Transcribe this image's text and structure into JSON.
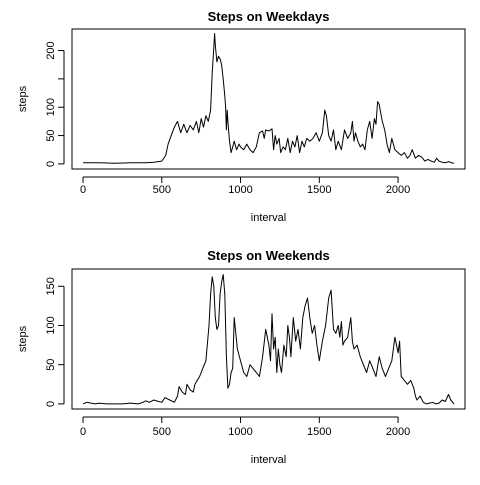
{
  "chart_data": [
    {
      "type": "line",
      "title": "Steps on Weekdays",
      "xlabel": "interval",
      "ylabel": "steps",
      "xlim": [
        -70,
        2425
      ],
      "ylim": [
        -9,
        238
      ],
      "xticks": [
        0,
        500,
        1000,
        1500,
        2000
      ],
      "yticks": [
        0,
        50,
        100,
        150,
        200
      ],
      "ytick_labels": [
        "0",
        "50",
        "100",
        "",
        "200"
      ],
      "grid": false,
      "series": [
        {
          "color": "#000000",
          "x": [
            0,
            100,
            200,
            300,
            400,
            450,
            500,
            525,
            540,
            560,
            580,
            600,
            620,
            640,
            650,
            660,
            680,
            700,
            720,
            735,
            750,
            765,
            780,
            795,
            810,
            820,
            830,
            835,
            840,
            845,
            850,
            860,
            870,
            880,
            890,
            900,
            905,
            910,
            915,
            920,
            930,
            940,
            950,
            960,
            975,
            990,
            1000,
            1020,
            1040,
            1060,
            1080,
            1100,
            1120,
            1140,
            1150,
            1160,
            1180,
            1200,
            1210,
            1220,
            1230,
            1245,
            1255,
            1270,
            1285,
            1300,
            1315,
            1330,
            1345,
            1360,
            1375,
            1390,
            1405,
            1420,
            1440,
            1460,
            1480,
            1500,
            1520,
            1535,
            1545,
            1560,
            1575,
            1590,
            1605,
            1620,
            1640,
            1660,
            1680,
            1700,
            1710,
            1720,
            1730,
            1745,
            1760,
            1775,
            1790,
            1805,
            1820,
            1835,
            1850,
            1860,
            1870,
            1880,
            1890,
            1900,
            1915,
            1930,
            1945,
            1960,
            1980,
            2000,
            2020,
            2040,
            2060,
            2075,
            2090,
            2110,
            2130,
            2150,
            2170,
            2190,
            2210,
            2230,
            2245,
            2260,
            2280,
            2300,
            2320,
            2340,
            2355
          ],
          "y": [
            2,
            2,
            1,
            2,
            2,
            3,
            5,
            15,
            35,
            50,
            65,
            75,
            55,
            70,
            62,
            55,
            68,
            60,
            75,
            55,
            80,
            65,
            85,
            75,
            95,
            160,
            205,
            230,
            210,
            195,
            180,
            190,
            185,
            175,
            150,
            120,
            100,
            60,
            95,
            75,
            40,
            20,
            30,
            40,
            25,
            35,
            30,
            25,
            35,
            25,
            20,
            30,
            55,
            58,
            45,
            60,
            58,
            62,
            25,
            50,
            35,
            45,
            20,
            30,
            25,
            45,
            20,
            40,
            30,
            50,
            20,
            40,
            30,
            45,
            40,
            45,
            55,
            40,
            55,
            95,
            85,
            50,
            40,
            60,
            25,
            40,
            25,
            60,
            45,
            55,
            75,
            40,
            55,
            40,
            30,
            35,
            25,
            60,
            75,
            45,
            80,
            70,
            110,
            105,
            90,
            75,
            60,
            35,
            20,
            45,
            25,
            20,
            15,
            20,
            10,
            15,
            25,
            10,
            15,
            12,
            5,
            8,
            5,
            3,
            10,
            5,
            3,
            2,
            4,
            2,
            1
          ]
        }
      ]
    },
    {
      "type": "line",
      "title": "Steps on Weekends",
      "xlabel": "interval",
      "ylabel": "steps",
      "xlim": [
        -70,
        2425
      ],
      "ylim": [
        -6.5,
        172
      ],
      "xticks": [
        0,
        500,
        1000,
        1500,
        2000
      ],
      "yticks": [
        0,
        50,
        100,
        150
      ],
      "ytick_labels": [
        "0",
        "50",
        "100",
        "150"
      ],
      "grid": false,
      "series": [
        {
          "color": "#000000",
          "x": [
            0,
            25,
            50,
            80,
            100,
            150,
            200,
            250,
            300,
            350,
            380,
            400,
            420,
            450,
            480,
            500,
            520,
            550,
            580,
            600,
            610,
            630,
            650,
            660,
            680,
            700,
            710,
            725,
            740,
            760,
            780,
            800,
            810,
            820,
            830,
            840,
            850,
            860,
            870,
            880,
            890,
            900,
            910,
            920,
            930,
            940,
            950,
            960,
            980,
            1000,
            1020,
            1040,
            1060,
            1080,
            1100,
            1120,
            1140,
            1160,
            1180,
            1190,
            1200,
            1210,
            1220,
            1230,
            1240,
            1250,
            1260,
            1275,
            1290,
            1300,
            1310,
            1320,
            1335,
            1350,
            1365,
            1380,
            1395,
            1410,
            1425,
            1440,
            1455,
            1470,
            1485,
            1500,
            1520,
            1540,
            1560,
            1575,
            1590,
            1605,
            1620,
            1630,
            1640,
            1650,
            1660,
            1680,
            1700,
            1710,
            1720,
            1740,
            1760,
            1780,
            1800,
            1820,
            1840,
            1860,
            1880,
            1900,
            1920,
            1940,
            1960,
            1980,
            2000,
            2010,
            2020,
            2040,
            2060,
            2080,
            2100,
            2110,
            2120,
            2140,
            2160,
            2180,
            2200,
            2220,
            2240,
            2260,
            2280,
            2300,
            2320,
            2335,
            2355
          ],
          "y": [
            0,
            2,
            1,
            0,
            1,
            0,
            0,
            0,
            1,
            0,
            2,
            4,
            2,
            5,
            3,
            2,
            8,
            5,
            2,
            10,
            22,
            15,
            12,
            25,
            18,
            15,
            25,
            30,
            35,
            45,
            55,
            100,
            140,
            162,
            150,
            110,
            95,
            100,
            140,
            155,
            165,
            140,
            60,
            20,
            25,
            40,
            45,
            110,
            70,
            55,
            40,
            35,
            50,
            45,
            40,
            35,
            60,
            95,
            75,
            55,
            115,
            70,
            85,
            40,
            70,
            50,
            40,
            75,
            60,
            100,
            85,
            60,
            110,
            80,
            95,
            70,
            110,
            125,
            135,
            110,
            90,
            100,
            75,
            55,
            80,
            100,
            135,
            145,
            95,
            90,
            100,
            85,
            105,
            75,
            80,
            85,
            110,
            80,
            70,
            75,
            60,
            50,
            40,
            55,
            45,
            35,
            60,
            45,
            35,
            45,
            55,
            85,
            65,
            80,
            35,
            30,
            25,
            30,
            20,
            10,
            5,
            10,
            2,
            0,
            1,
            2,
            0,
            1,
            5,
            3,
            12,
            5,
            0
          ]
        }
      ]
    }
  ]
}
